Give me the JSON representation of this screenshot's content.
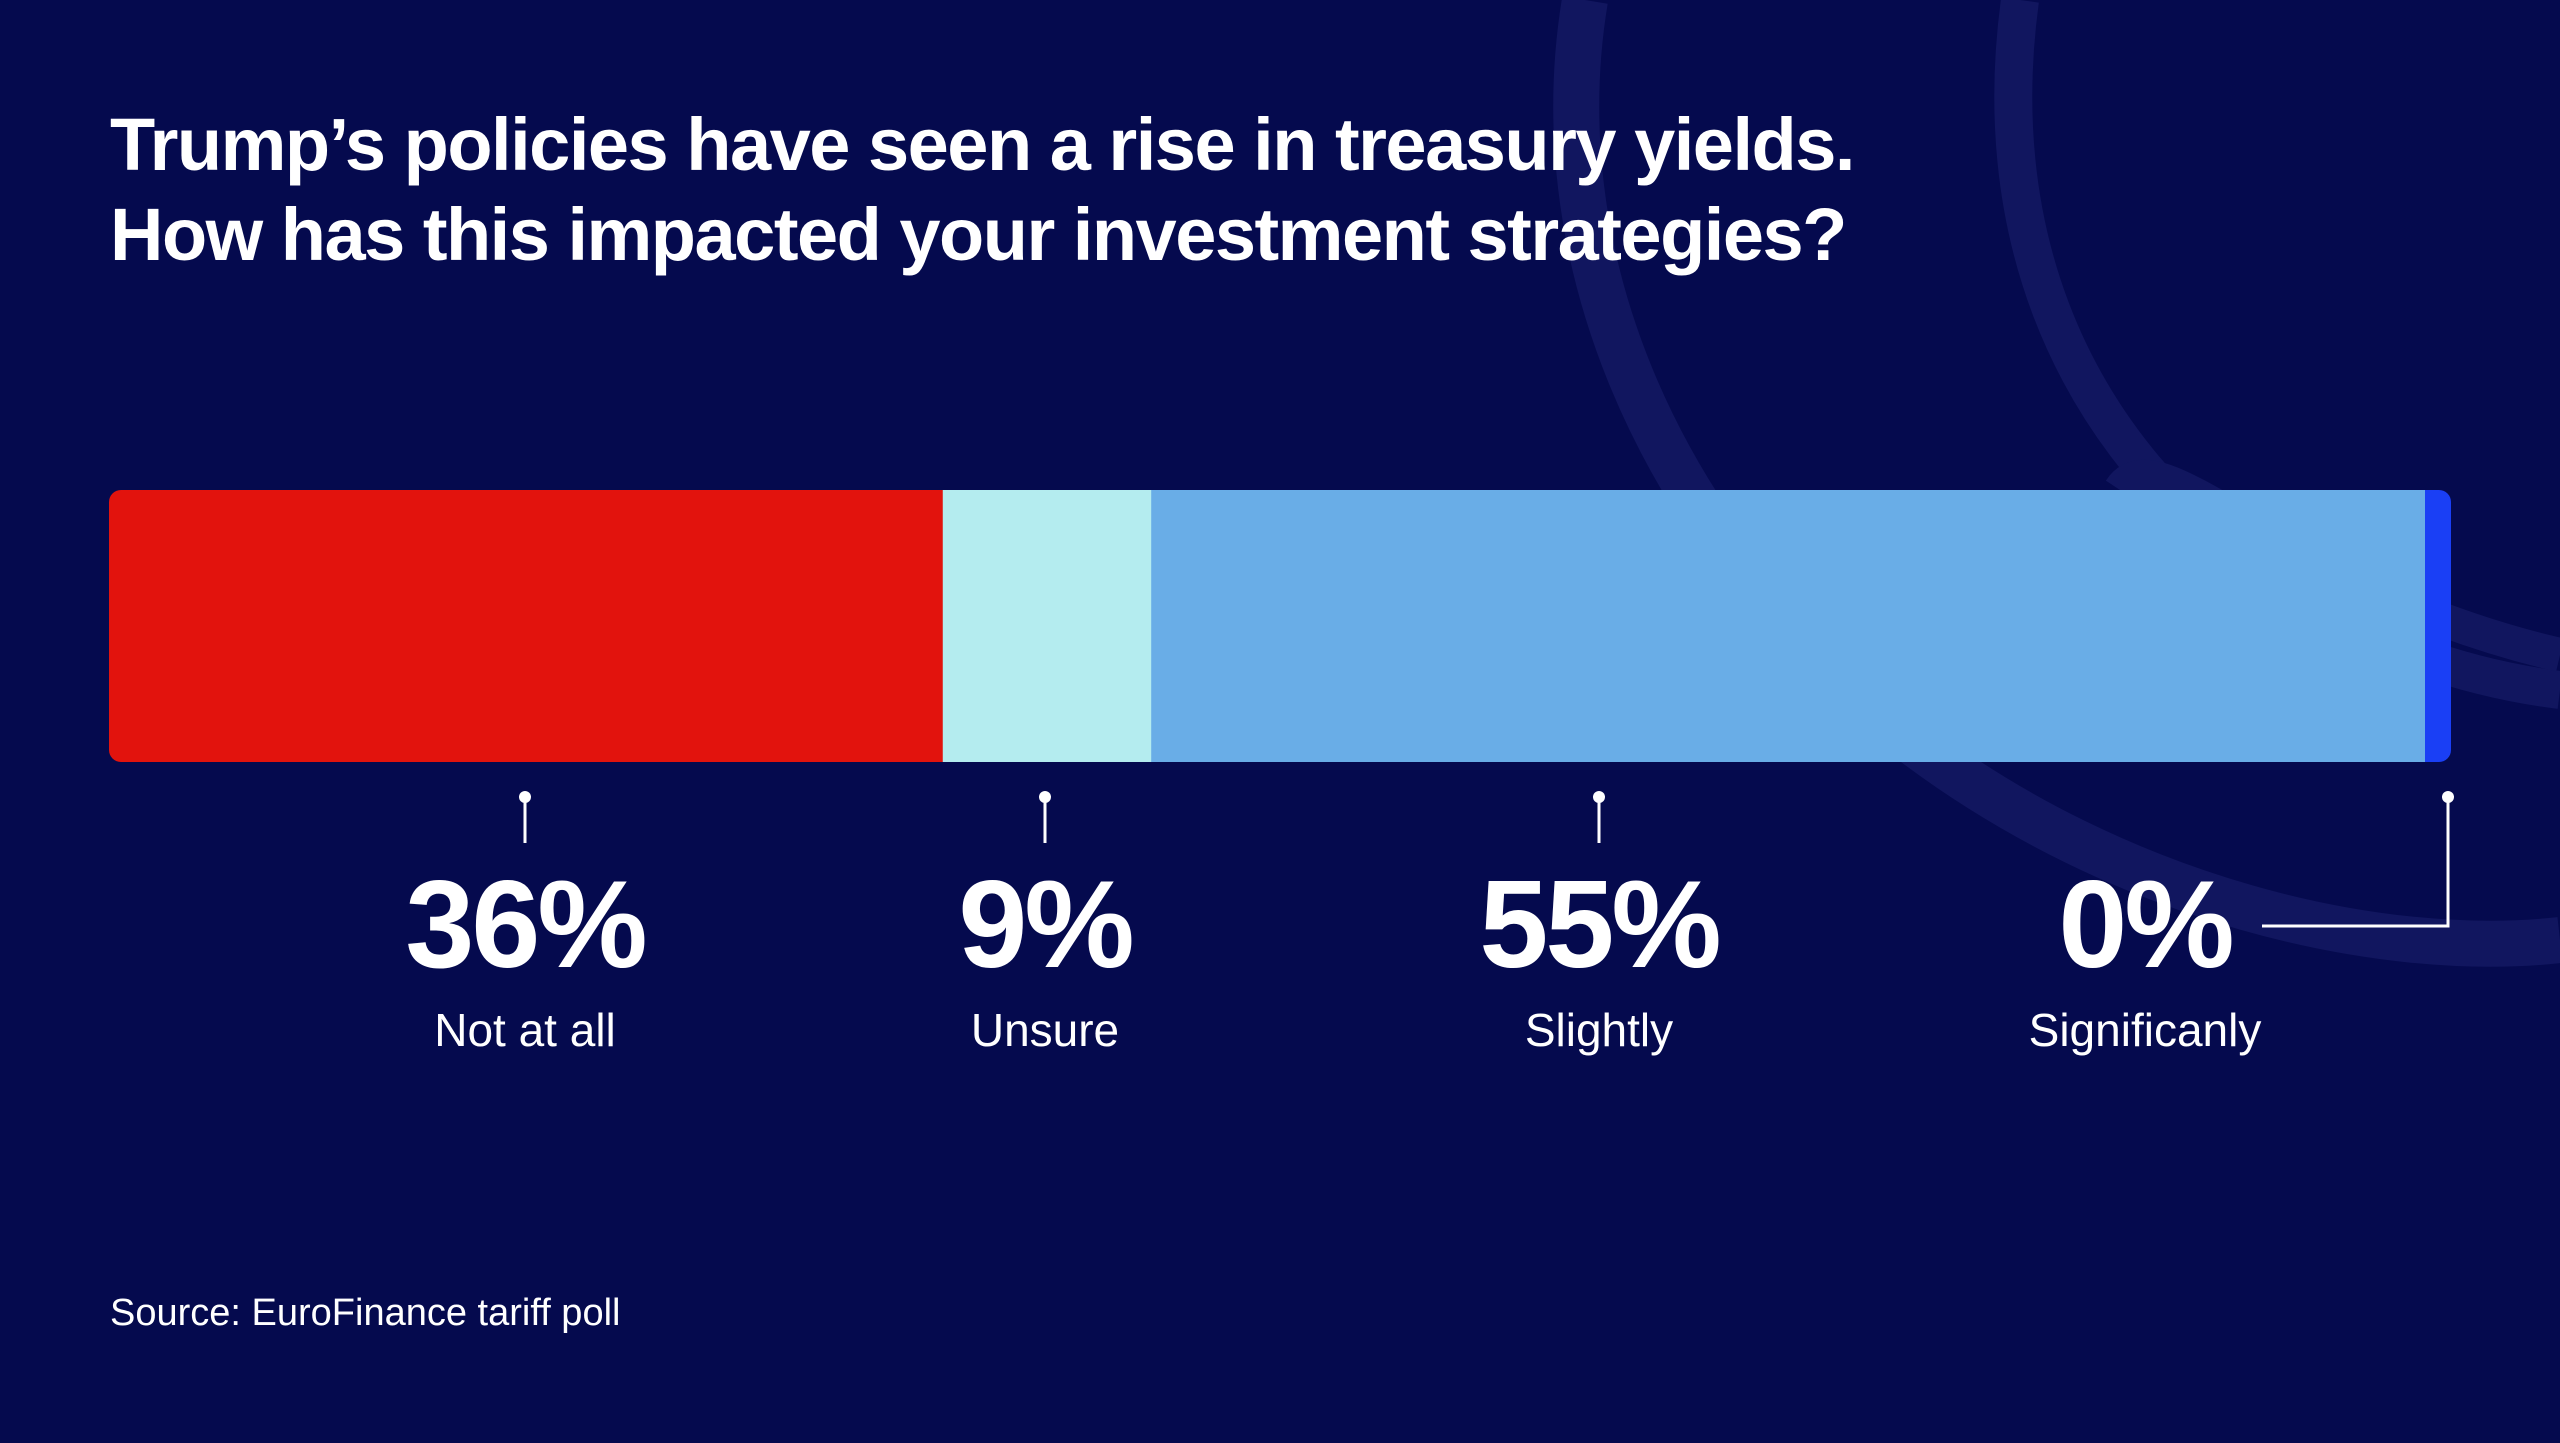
{
  "colors": {
    "background": "#050a4e",
    "decoration": "#11165f",
    "text": "#ffffff"
  },
  "header": {
    "title_line1": "Trump’s policies have seen a rise in treasury yields.",
    "title_line2": "How has this impacted your investment strategies?"
  },
  "chart_data": {
    "type": "bar",
    "orientation": "horizontal-stacked",
    "total": 100,
    "unit": "%",
    "categories": [
      "Not at all",
      "Unsure",
      "Slightly",
      "Significanly"
    ],
    "values": [
      36,
      9,
      55,
      0
    ],
    "value_labels": [
      "36%",
      "9%",
      "55%",
      "0%"
    ],
    "colors": [
      "#e2130d",
      "#b4ecef",
      "#69ade7",
      "#1a3ff5"
    ],
    "grid": false,
    "legend": "labels below segments"
  },
  "footer": {
    "source": "Source: EuroFinance tariff poll"
  }
}
